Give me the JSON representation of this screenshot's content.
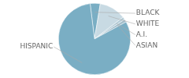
{
  "chart_data": {
    "type": "pie",
    "categories": [
      "BLACK",
      "WHITE",
      "A.I.",
      "ASIAN",
      "HISPANIC"
    ],
    "values": [
      4.5,
      12.0,
      1.2,
      1.3,
      81.0
    ],
    "colors": [
      "#7aaec4",
      "#c8dae3",
      "#b5cdd8",
      "#a5bfcc",
      "#7aaec4"
    ]
  }
}
